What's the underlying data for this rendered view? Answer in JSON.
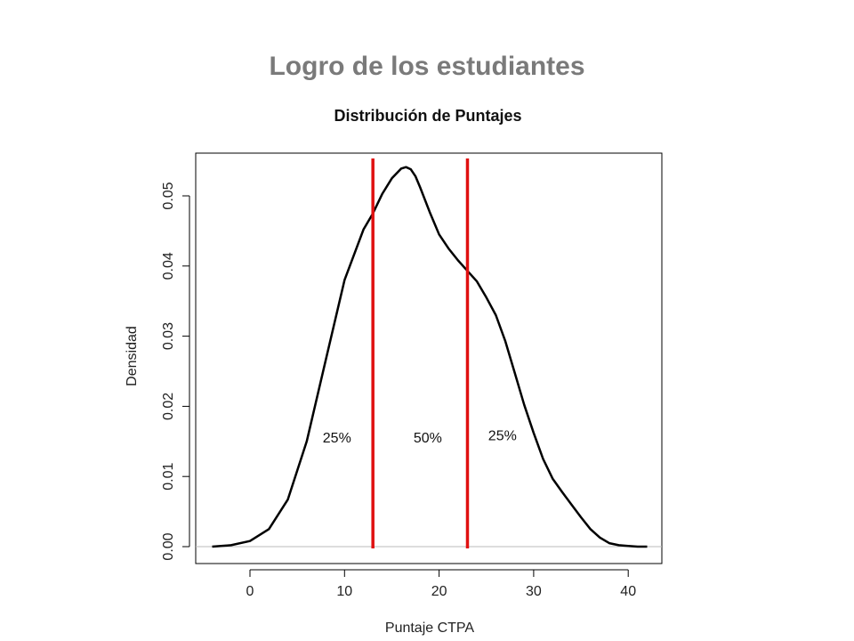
{
  "slide": {
    "title": "Logro de los estudiantes"
  },
  "chart_data": {
    "type": "line",
    "title": "Distribución de Puntajes",
    "xlabel": "Puntaje CTPA",
    "ylabel": "Densidad",
    "xlim": [
      -5,
      44
    ],
    "ylim": [
      0,
      0.056
    ],
    "x_ticks": [
      0,
      10,
      20,
      30,
      40
    ],
    "x_tick_labels": [
      "0",
      "10",
      "20",
      "30",
      "40"
    ],
    "y_ticks": [
      0.0,
      0.01,
      0.02,
      0.03,
      0.04,
      0.05
    ],
    "y_tick_labels": [
      "0.00",
      "0.01",
      "0.02",
      "0.03",
      "0.04",
      "0.05"
    ],
    "grid": false,
    "baseline_color": "#bbbbbb",
    "series": [
      {
        "color": "#000000",
        "x": [
          -4,
          -2,
          0,
          2,
          4,
          6,
          8,
          10,
          12,
          13,
          14,
          15,
          16,
          16.5,
          17,
          17.5,
          18,
          19,
          20,
          21,
          22,
          23,
          24,
          25,
          26,
          27,
          28,
          29,
          30,
          31,
          32,
          33,
          34,
          35,
          36,
          37,
          38,
          39,
          40,
          41,
          42
        ],
        "y": [
          0.0,
          0.0002,
          0.0008,
          0.0025,
          0.0067,
          0.015,
          0.0265,
          0.038,
          0.0452,
          0.0475,
          0.0503,
          0.0525,
          0.0539,
          0.0541,
          0.0538,
          0.0528,
          0.0512,
          0.0477,
          0.0445,
          0.0425,
          0.0408,
          0.0393,
          0.0378,
          0.0355,
          0.033,
          0.0293,
          0.0248,
          0.0202,
          0.0162,
          0.0125,
          0.0097,
          0.0078,
          0.006,
          0.0042,
          0.0025,
          0.0013,
          0.0005,
          0.0002,
          0.0001,
          0.0,
          0.0
        ]
      }
    ],
    "vlines": [
      {
        "x": 13,
        "color": "#e01010"
      },
      {
        "x": 23,
        "color": "#e01010"
      }
    ],
    "annotations": [
      {
        "text": "25%",
        "x": 9.2,
        "y": 0.0155
      },
      {
        "text": "50%",
        "x": 18.8,
        "y": 0.0155
      },
      {
        "text": "25%",
        "x": 26.7,
        "y": 0.0158
      }
    ]
  }
}
